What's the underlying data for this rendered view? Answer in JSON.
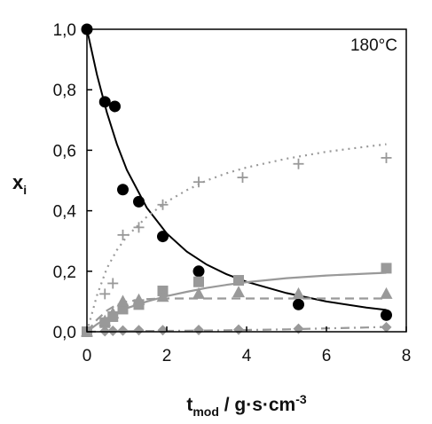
{
  "chart_data": {
    "type": "scatter",
    "annotation": "180°C",
    "xlabel": {
      "main": "t",
      "sub": "mod",
      "rest": " / g·s·cm",
      "sup": "-3"
    },
    "ylabel": {
      "main": "x",
      "sub": "i"
    },
    "xlim": [
      0,
      8
    ],
    "ylim": [
      0,
      1.0
    ],
    "xticks": [
      "0",
      "2",
      "4",
      "6",
      "8"
    ],
    "yticks": [
      "0,0",
      "0,2",
      "0,4",
      "0,6",
      "0,8",
      "1,0"
    ],
    "grid": false,
    "legend": "none",
    "series": [
      {
        "marker": "circle",
        "color": "#000000",
        "points": [
          [
            0,
            1.0
          ],
          [
            0.45,
            0.76
          ],
          [
            0.7,
            0.745
          ],
          [
            0.9,
            0.47
          ],
          [
            1.3,
            0.43
          ],
          [
            1.9,
            0.315
          ],
          [
            2.8,
            0.2
          ],
          [
            5.3,
            0.09
          ],
          [
            7.5,
            0.055
          ]
        ],
        "fit": {
          "style": "solid",
          "color": "#000000",
          "points": [
            [
              0,
              1.0
            ],
            [
              0.25,
              0.85
            ],
            [
              0.5,
              0.725
            ],
            [
              0.75,
              0.62
            ],
            [
              1,
              0.535
            ],
            [
              1.5,
              0.41
            ],
            [
              2,
              0.325
            ],
            [
              2.5,
              0.265
            ],
            [
              3,
              0.222
            ],
            [
              3.5,
              0.19
            ],
            [
              4,
              0.165
            ],
            [
              5,
              0.128
            ],
            [
              6,
              0.1
            ],
            [
              7,
              0.08
            ],
            [
              7.5,
              0.072
            ]
          ]
        }
      },
      {
        "marker": "plus",
        "color": "#999999",
        "points": [
          [
            0,
            0.0
          ],
          [
            0.45,
            0.125
          ],
          [
            0.65,
            0.16
          ],
          [
            0.9,
            0.32
          ],
          [
            1.3,
            0.345
          ],
          [
            1.9,
            0.42
          ],
          [
            2.8,
            0.495
          ],
          [
            3.9,
            0.51
          ],
          [
            5.3,
            0.555
          ],
          [
            7.5,
            0.575
          ]
        ],
        "fit": {
          "style": "dotted",
          "color": "#999999",
          "points": [
            [
              0,
              0.0
            ],
            [
              0.25,
              0.12
            ],
            [
              0.5,
              0.21
            ],
            [
              0.75,
              0.27
            ],
            [
              1,
              0.315
            ],
            [
              1.5,
              0.38
            ],
            [
              2,
              0.43
            ],
            [
              2.5,
              0.468
            ],
            [
              3,
              0.5
            ],
            [
              3.5,
              0.524
            ],
            [
              4,
              0.543
            ],
            [
              5,
              0.572
            ],
            [
              6,
              0.595
            ],
            [
              7,
              0.612
            ],
            [
              7.5,
              0.62
            ]
          ]
        }
      },
      {
        "marker": "square",
        "color": "#999999",
        "points": [
          [
            0,
            0.0
          ],
          [
            0.45,
            0.03
          ],
          [
            0.65,
            0.05
          ],
          [
            0.9,
            0.075
          ],
          [
            1.3,
            0.09
          ],
          [
            1.9,
            0.135
          ],
          [
            2.8,
            0.165
          ],
          [
            3.8,
            0.17
          ],
          [
            7.5,
            0.21
          ]
        ],
        "fit": {
          "style": "solid",
          "color": "#999999",
          "points": [
            [
              0,
              0.0
            ],
            [
              0.25,
              0.025
            ],
            [
              0.5,
              0.045
            ],
            [
              0.75,
              0.063
            ],
            [
              1,
              0.078
            ],
            [
              1.5,
              0.1
            ],
            [
              2,
              0.118
            ],
            [
              2.5,
              0.132
            ],
            [
              3,
              0.145
            ],
            [
              3.5,
              0.155
            ],
            [
              4,
              0.164
            ],
            [
              5,
              0.177
            ],
            [
              6,
              0.186
            ],
            [
              7,
              0.192
            ],
            [
              7.5,
              0.195
            ]
          ]
        }
      },
      {
        "marker": "triangle",
        "color": "#999999",
        "points": [
          [
            0,
            0.0
          ],
          [
            0.45,
            0.035
          ],
          [
            0.65,
            0.06
          ],
          [
            0.9,
            0.1
          ],
          [
            1.3,
            0.105
          ],
          [
            1.9,
            0.115
          ],
          [
            2.8,
            0.125
          ],
          [
            3.8,
            0.13
          ],
          [
            5.3,
            0.125
          ],
          [
            7.5,
            0.125
          ]
        ],
        "fit": {
          "style": "dashed",
          "color": "#999999",
          "points": [
            [
              0,
              0.0
            ],
            [
              0.25,
              0.04
            ],
            [
              0.5,
              0.07
            ],
            [
              0.75,
              0.09
            ],
            [
              1,
              0.1
            ],
            [
              1.5,
              0.108
            ],
            [
              2,
              0.11
            ],
            [
              3,
              0.11
            ],
            [
              4,
              0.11
            ],
            [
              5,
              0.11
            ],
            [
              6,
              0.11
            ],
            [
              7,
              0.11
            ],
            [
              7.5,
              0.11
            ]
          ]
        }
      },
      {
        "marker": "diamond",
        "color": "#999999",
        "points": [
          [
            0,
            0.0
          ],
          [
            0.45,
            0.002
          ],
          [
            0.65,
            0.003
          ],
          [
            0.9,
            0.004
          ],
          [
            1.3,
            0.005
          ],
          [
            1.9,
            0.005
          ],
          [
            2.8,
            0.006
          ],
          [
            3.8,
            0.007
          ],
          [
            5.3,
            0.01
          ],
          [
            7.5,
            0.015
          ]
        ],
        "fit": {
          "style": "dashdot",
          "color": "#999999",
          "points": [
            [
              0,
              0.0
            ],
            [
              1,
              0.002
            ],
            [
              2,
              0.003
            ],
            [
              3,
              0.004
            ],
            [
              4,
              0.006
            ],
            [
              5,
              0.008
            ],
            [
              6,
              0.011
            ],
            [
              7,
              0.014
            ],
            [
              7.5,
              0.016
            ]
          ]
        }
      }
    ]
  }
}
